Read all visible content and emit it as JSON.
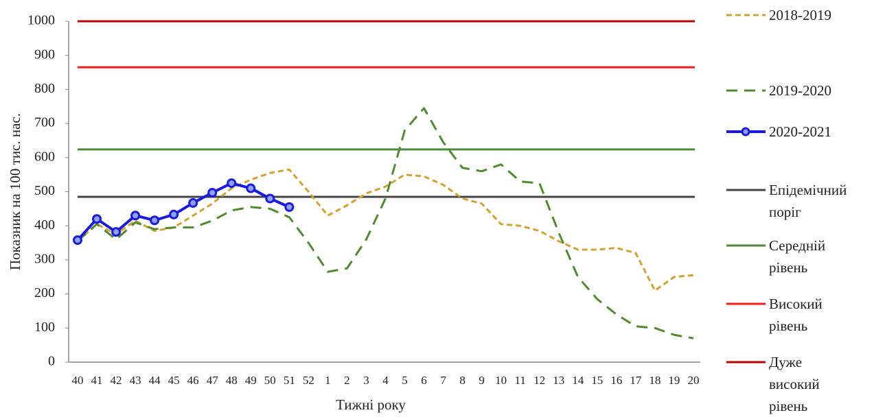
{
  "chart_data": {
    "type": "line",
    "y_label": "Показник на 100 тис. нас.",
    "x_label": "Тижні року",
    "categories": [
      "40",
      "41",
      "42",
      "43",
      "44",
      "45",
      "46",
      "47",
      "48",
      "49",
      "50",
      "51",
      "52",
      "1",
      "2",
      "3",
      "4",
      "5",
      "6",
      "7",
      "8",
      "9",
      "10",
      "11",
      "12",
      "13",
      "14",
      "15",
      "16",
      "17",
      "18",
      "19",
      "20"
    ],
    "ylim": [
      0,
      1000
    ],
    "yticks": [
      0,
      100,
      200,
      300,
      400,
      500,
      600,
      700,
      800,
      900,
      1000
    ],
    "grid": false,
    "legend": "right",
    "series": [
      {
        "name": "2018-2019",
        "color": "#d4a030",
        "style": "dashed",
        "values": [
          355,
          405,
          375,
          415,
          385,
          395,
          430,
          465,
          510,
          535,
          555,
          565,
          500,
          430,
          460,
          495,
          515,
          550,
          545,
          520,
          480,
          465,
          405,
          400,
          385,
          355,
          330,
          330,
          335,
          320,
          210,
          250,
          255
        ]
      },
      {
        "name": "2019-2020",
        "color": "#4f8a2f",
        "style": "dashed",
        "values": [
          355,
          405,
          360,
          410,
          390,
          395,
          395,
          415,
          445,
          455,
          450,
          425,
          350,
          265,
          275,
          360,
          480,
          680,
          745,
          645,
          570,
          560,
          580,
          530,
          525,
          380,
          250,
          185,
          140,
          105,
          100,
          80,
          70
        ]
      },
      {
        "name": "2020-2021",
        "color": "#1a1adc",
        "style": "solid-markers",
        "values": [
          358,
          420,
          382,
          430,
          416,
          433,
          467,
          497,
          525,
          510,
          480,
          455,
          null,
          null,
          null,
          null,
          null,
          null,
          null,
          null,
          null,
          null,
          null,
          null,
          null,
          null,
          null,
          null,
          null,
          null,
          null,
          null,
          null
        ]
      }
    ],
    "reference_lines": [
      {
        "name": "Епідемічний поріг",
        "color": "#454545",
        "value": 485
      },
      {
        "name": "Середній рівень",
        "color": "#4a8a3a",
        "value": 624
      },
      {
        "name": "Високий рівень",
        "color": "#ff1a1a",
        "value": 865
      },
      {
        "name": "Дуже високий рівень",
        "color": "#c00000",
        "value": 1000
      }
    ]
  }
}
